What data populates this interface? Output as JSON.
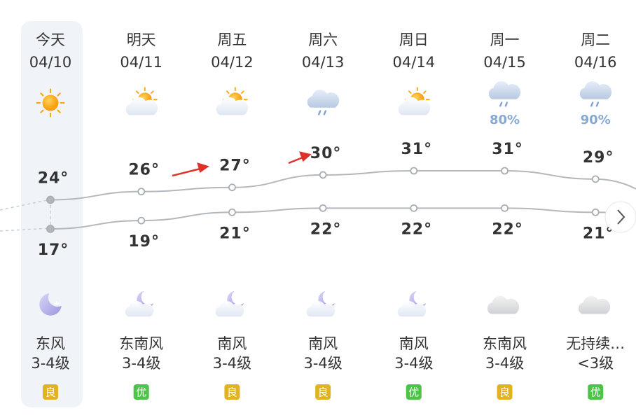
{
  "days": [
    {
      "name": "今天",
      "date": "04/10",
      "high": {
        "value": 24,
        "label": "24°"
      },
      "low": {
        "value": 17,
        "label": "17°"
      },
      "wind": "东风",
      "level": "3-4级",
      "aqi": {
        "label": "良",
        "color": "#e2b321"
      }
    },
    {
      "name": "明天",
      "date": "04/11",
      "high": {
        "value": 26,
        "label": "26°"
      },
      "low": {
        "value": 19,
        "label": "19°"
      },
      "wind": "东南风",
      "level": "3-4级",
      "aqi": {
        "label": "优",
        "color": "#4cc447"
      }
    },
    {
      "name": "周五",
      "date": "04/12",
      "high": {
        "value": 27,
        "label": "27°"
      },
      "low": {
        "value": 21,
        "label": "21°"
      },
      "wind": "南风",
      "level": "3-4级",
      "aqi": {
        "label": "良",
        "color": "#e2b321"
      }
    },
    {
      "name": "周六",
      "date": "04/13",
      "high": {
        "value": 30,
        "label": "30°"
      },
      "low": {
        "value": 22,
        "label": "22°"
      },
      "wind": "南风",
      "level": "3-4级",
      "aqi": {
        "label": "良",
        "color": "#e2b321"
      }
    },
    {
      "name": "周日",
      "date": "04/14",
      "high": {
        "value": 31,
        "label": "31°"
      },
      "low": {
        "value": 22,
        "label": "22°"
      },
      "wind": "南风",
      "level": "3-4级",
      "aqi": {
        "label": "优",
        "color": "#4cc447"
      }
    },
    {
      "name": "周一",
      "date": "04/15",
      "high": {
        "value": 31,
        "label": "31°"
      },
      "low": {
        "value": 22,
        "label": "22°"
      },
      "precip": "80%",
      "wind": "东南风",
      "level": "3-4级",
      "aqi": {
        "label": "良",
        "color": "#e2b321"
      }
    },
    {
      "name": "周二",
      "date": "04/16",
      "high": {
        "value": 29,
        "label": "29°"
      },
      "low": {
        "value": 21,
        "label": "21°"
      },
      "precip": "90%",
      "wind": "无持续…",
      "level": "<3级",
      "aqi": {
        "label": "优",
        "color": "#4cc447"
      }
    }
  ]
}
